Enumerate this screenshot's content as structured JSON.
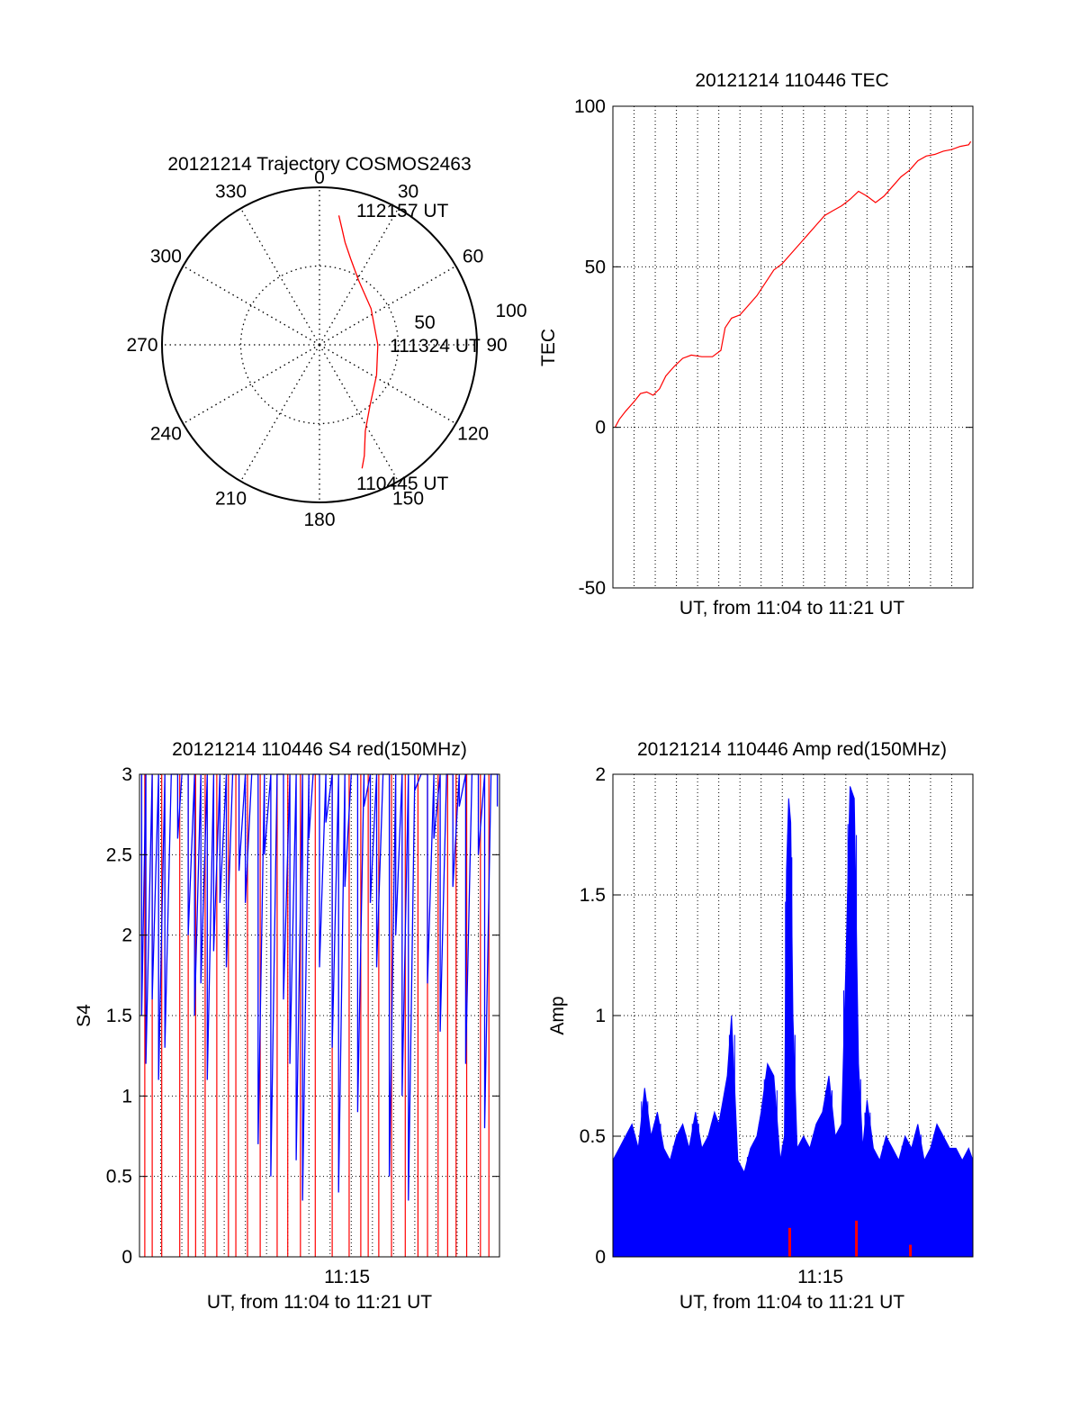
{
  "chart_data": [
    {
      "type": "polar",
      "title": "20121214 Trajectory COSMOS2463",
      "azimuth_ticks": [
        "0",
        "30",
        "60",
        "90",
        "120",
        "150",
        "180",
        "210",
        "240",
        "270",
        "300",
        "330"
      ],
      "radial_ticks": [
        "50",
        "100"
      ],
      "radial_range": [
        0,
        100
      ],
      "grid": true,
      "series": [
        {
          "color": "#ff0000",
          "points": [
            [
              8.5,
              83
            ],
            [
              11,
              75
            ],
            [
              14,
              67
            ],
            [
              20,
              58
            ],
            [
              31,
              48
            ],
            [
              55,
              40
            ],
            [
              90,
              37
            ],
            [
              118,
              41
            ],
            [
              140,
              50
            ],
            [
              152,
              62
            ],
            [
              158,
              76
            ],
            [
              161,
              83
            ]
          ]
        }
      ],
      "annotations": [
        {
          "text": "112157 UT",
          "az": 8.5,
          "r": 83
        },
        {
          "text": "111324 UT",
          "az": 90,
          "r": 37
        },
        {
          "text": "110445 UT",
          "az": 161,
          "r": 83
        }
      ]
    },
    {
      "type": "line",
      "title": "20121214 110446 TEC",
      "xlabel": "UT, from 11:04 to 11:21 UT",
      "ylabel": "TEC",
      "xlim": [
        0,
        17
      ],
      "ylim": [
        -50,
        100
      ],
      "yticks": [
        "-50",
        "0",
        "50",
        "100"
      ],
      "grid": true,
      "series": [
        {
          "color": "#ff0000",
          "x": [
            0.1,
            0.3,
            0.6,
            1.0,
            1.3,
            1.6,
            1.9,
            2.2,
            2.5,
            2.9,
            3.3,
            3.7,
            4.2,
            4.7,
            5.1,
            5.3,
            5.6,
            6.0,
            6.4,
            6.8,
            7.2,
            7.6,
            8.0,
            8.4,
            8.8,
            9.2,
            9.6,
            10.0,
            10.4,
            10.8,
            11.2,
            11.6,
            12.0,
            12.4,
            12.8,
            13.2,
            13.6,
            14.0,
            14.4,
            14.8,
            15.2,
            15.6,
            16.0,
            16.4,
            16.8,
            16.9
          ],
          "y": [
            0,
            2.5,
            5,
            8,
            10.5,
            11,
            10,
            12,
            16,
            19,
            21.5,
            22.5,
            22,
            22,
            24,
            31,
            34,
            35,
            38,
            41,
            45,
            49,
            51,
            54,
            57,
            60,
            63,
            66,
            67.5,
            69,
            71,
            73.5,
            72,
            70,
            72,
            75,
            78,
            80,
            83,
            84.5,
            85,
            86,
            86.5,
            87.5,
            88,
            89
          ]
        }
      ]
    },
    {
      "type": "line",
      "title": "20121214 110446 S4 red(150MHz)",
      "xlabel": "UT, from 11:04 to 11:21 UT",
      "ylabel": "S4",
      "xlim": [
        0,
        17
      ],
      "ylim": [
        0,
        3
      ],
      "yticks": [
        "0",
        "0.5",
        "1",
        "1.5",
        "2",
        "2.5",
        "3"
      ],
      "xticks": [
        {
          "value": 9.8,
          "label": "11:15"
        }
      ],
      "grid": true,
      "series": [
        {
          "color": "#0000ff",
          "x": [
            0.1,
            0.3,
            0.6,
            0.9,
            1.2,
            1.5,
            1.8,
            2.0,
            2.3,
            2.6,
            2.9,
            3.2,
            3.5,
            3.8,
            4.1,
            4.4,
            4.7,
            5.0,
            5.3,
            5.6,
            5.9,
            6.2,
            6.5,
            6.8,
            7.1,
            7.4,
            7.7,
            8.0,
            8.2,
            8.5,
            8.8,
            9.1,
            9.4,
            9.7,
            10.0,
            10.3,
            10.6,
            10.9,
            11.2,
            11.5,
            11.8,
            12.1,
            12.4,
            12.7,
            13.0,
            13.3,
            13.6,
            13.9,
            14.2,
            14.5,
            14.8,
            15.1,
            15.4,
            15.7,
            16.0,
            16.3,
            16.6,
            16.9
          ],
          "y": [
            1.5,
            1.2,
            1.6,
            1.1,
            1.3,
            3.0,
            2.6,
            3.0,
            2.0,
            1.5,
            1.7,
            1.1,
            1.9,
            2.2,
            1.8,
            3.0,
            2.4,
            2.2,
            3.0,
            0.7,
            2.5,
            0.5,
            3.0,
            1.6,
            1.2,
            0.6,
            0.35,
            2.6,
            3.0,
            1.8,
            2.7,
            1.3,
            0.4,
            2.3,
            3.0,
            0.9,
            2.8,
            2.2,
            1.8,
            3.0,
            0.5,
            2.0,
            1.0,
            0.35,
            2.9,
            3.0,
            1.7,
            2.6,
            1.4,
            3.0,
            2.3,
            2.8,
            1.2,
            3.0,
            2.5,
            0.8,
            3.0,
            2.8
          ]
        },
        {
          "color": "#ff0000",
          "x": [
            0.25,
            0.6,
            1.05,
            1.9,
            2.3,
            2.65,
            3.1,
            3.65,
            4.2,
            4.55,
            5.1,
            5.7,
            6.5,
            7.0,
            7.6,
            8.3,
            9.1,
            9.9,
            10.45,
            10.8,
            11.3,
            11.9,
            12.55,
            13.15,
            13.6,
            14.1,
            14.55,
            14.95,
            15.45,
            16.1,
            16.5
          ],
          "y": [
            0,
            0,
            0,
            0,
            0,
            0,
            0,
            0,
            0,
            0,
            0,
            0,
            0,
            0,
            0,
            0,
            0,
            0,
            0,
            0,
            0,
            0,
            0,
            0,
            0,
            0,
            0,
            0,
            0,
            0,
            0
          ]
        }
      ]
    },
    {
      "type": "area",
      "title": "20121214 110446 Amp red(150MHz)",
      "xlabel": "UT, from 11:04 to 11:21 UT",
      "ylabel": "Amp",
      "xlim": [
        0,
        17
      ],
      "ylim": [
        0,
        2
      ],
      "yticks": [
        "0",
        "0.5",
        "1",
        "1.5",
        "2"
      ],
      "xticks": [
        {
          "value": 9.8,
          "label": "11:15"
        }
      ],
      "grid": true,
      "series": [
        {
          "color": "#0000ff",
          "x": [
            0,
            0.3,
            0.6,
            0.9,
            1.2,
            1.5,
            1.8,
            2.1,
            2.4,
            2.7,
            3.0,
            3.3,
            3.6,
            3.9,
            4.2,
            4.5,
            4.8,
            5.0,
            5.2,
            5.4,
            5.6,
            5.9,
            6.2,
            6.5,
            6.8,
            7.0,
            7.3,
            7.6,
            7.9,
            8.1,
            8.2,
            8.3,
            8.4,
            8.5,
            8.7,
            9.0,
            9.3,
            9.6,
            9.9,
            10.2,
            10.5,
            10.8,
            11.0,
            11.2,
            11.4,
            11.6,
            11.8,
            12.0,
            12.3,
            12.6,
            12.9,
            13.2,
            13.5,
            13.8,
            14.1,
            14.4,
            14.7,
            15.0,
            15.3,
            15.6,
            15.9,
            16.2,
            16.5,
            16.8,
            17.0
          ],
          "y": [
            0.4,
            0.45,
            0.5,
            0.55,
            0.45,
            0.7,
            0.5,
            0.6,
            0.45,
            0.4,
            0.5,
            0.55,
            0.45,
            0.6,
            0.45,
            0.5,
            0.6,
            0.55,
            0.65,
            0.75,
            1.0,
            0.4,
            0.35,
            0.45,
            0.5,
            0.6,
            0.8,
            0.75,
            0.4,
            0.5,
            1.6,
            1.9,
            1.8,
            1.0,
            0.45,
            0.5,
            0.45,
            0.55,
            0.6,
            0.75,
            0.5,
            0.55,
            1.2,
            1.95,
            1.9,
            0.8,
            0.45,
            0.65,
            0.45,
            0.4,
            0.5,
            0.45,
            0.4,
            0.5,
            0.45,
            0.55,
            0.4,
            0.45,
            0.55,
            0.5,
            0.45,
            0.45,
            0.4,
            0.45,
            0.4
          ]
        },
        {
          "color": "#ff0000",
          "x": [
            8.35,
            11.5,
            14.05
          ],
          "y": [
            0.12,
            0.15,
            0.05
          ]
        }
      ]
    }
  ]
}
